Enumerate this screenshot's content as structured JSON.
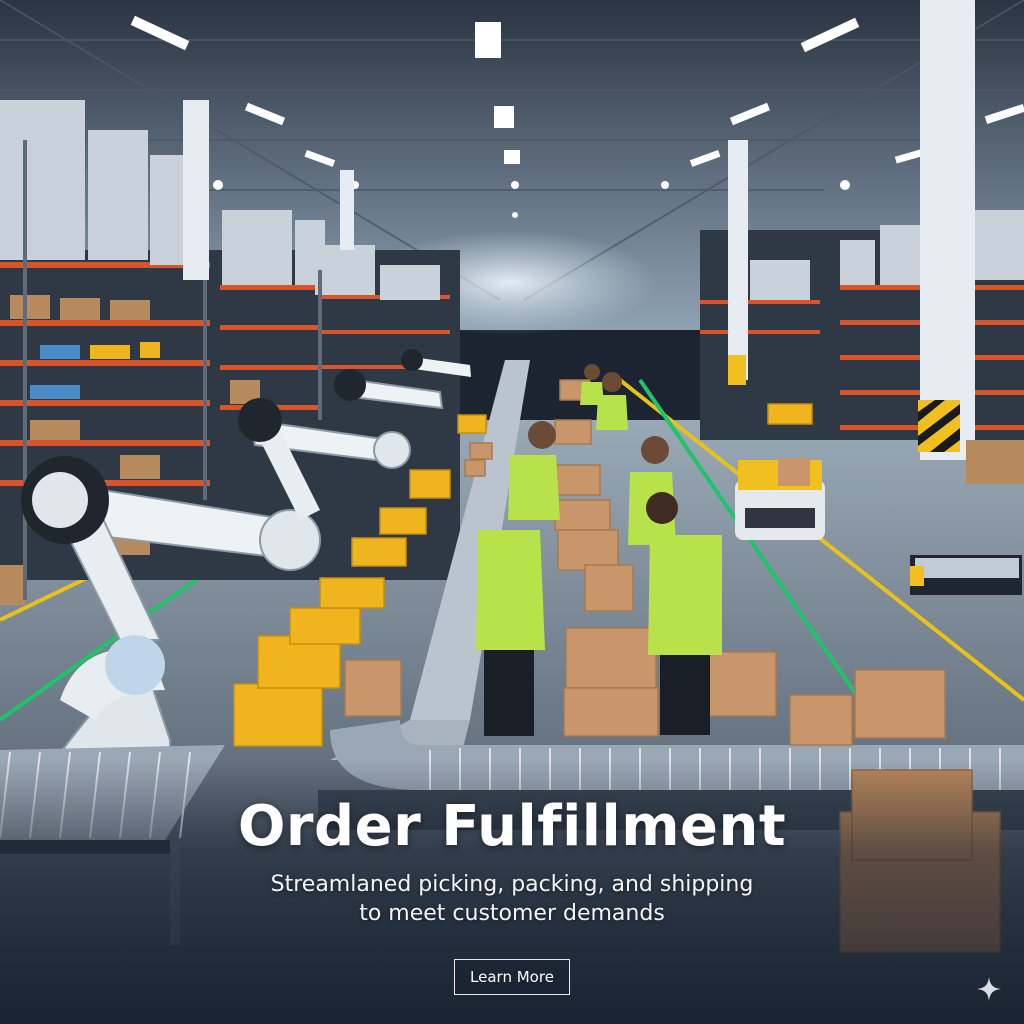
{
  "hero": {
    "title": "Order Fulfillment",
    "subtitle_line1": "Streamlaned picking, packing, and shipping",
    "subtitle_line2": "to meet customer demands",
    "cta_label": "Learn More"
  },
  "colors": {
    "shelf_orange": "#d8542a",
    "tote_yellow": "#f0b41e",
    "vest_green": "#b7e24a",
    "floor_line_yellow": "#e8c21a",
    "floor_line_green": "#1fc46a",
    "overlay_navy": "#141e2d"
  },
  "icons": [
    "sparkle-icon"
  ]
}
